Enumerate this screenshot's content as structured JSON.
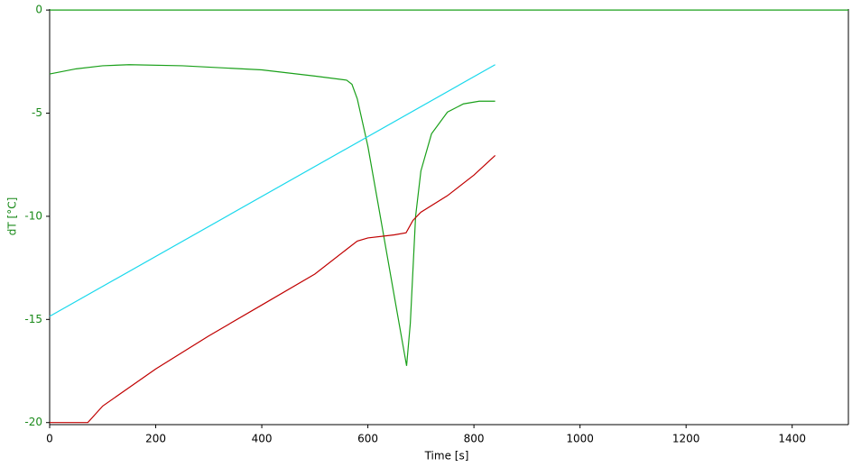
{
  "chart_data": {
    "type": "line",
    "x_label": "Time [s]",
    "y_label": "dT [°C]",
    "axis_color": "#1a8a1a",
    "xlim": [
      0,
      1506
    ],
    "xticks": [
      0,
      200,
      400,
      600,
      800,
      1000,
      1200,
      1400
    ],
    "ylim": [
      -20.1,
      0.05
    ],
    "yticks": [
      0,
      -5,
      -10,
      -15,
      -20
    ],
    "series": [
      {
        "color": "#1aa01a",
        "x": [
          0,
          1506
        ],
        "values": [
          0,
          0
        ]
      },
      {
        "color": "#1aa01a",
        "x": [
          0,
          50,
          100,
          150,
          250,
          400,
          500,
          560,
          570,
          580,
          600,
          620,
          650,
          673,
          680,
          690,
          700,
          720,
          750,
          780,
          810,
          840
        ],
        "values": [
          -3.1,
          -2.85,
          -2.7,
          -2.65,
          -2.7,
          -2.9,
          -3.2,
          -3.4,
          -3.6,
          -4.3,
          -6.6,
          -9.5,
          -13.9,
          -17.25,
          -15.2,
          -10.0,
          -7.8,
          -6.0,
          -4.95,
          -4.55,
          -4.42,
          -4.42
        ]
      },
      {
        "color": "#19d8ec",
        "x": [
          0,
          840
        ],
        "values": [
          -14.85,
          -2.65
        ]
      },
      {
        "color": "#c00000",
        "x": [
          0,
          72,
          100,
          200,
          300,
          400,
          500,
          560,
          580,
          600,
          650,
          672,
          685,
          700,
          750,
          800,
          840
        ],
        "values": [
          -20,
          -20,
          -19.2,
          -17.4,
          -15.8,
          -14.3,
          -12.8,
          -11.6,
          -11.2,
          -11.05,
          -10.9,
          -10.8,
          -10.2,
          -9.8,
          -9.0,
          -8.0,
          -7.05
        ]
      }
    ]
  }
}
